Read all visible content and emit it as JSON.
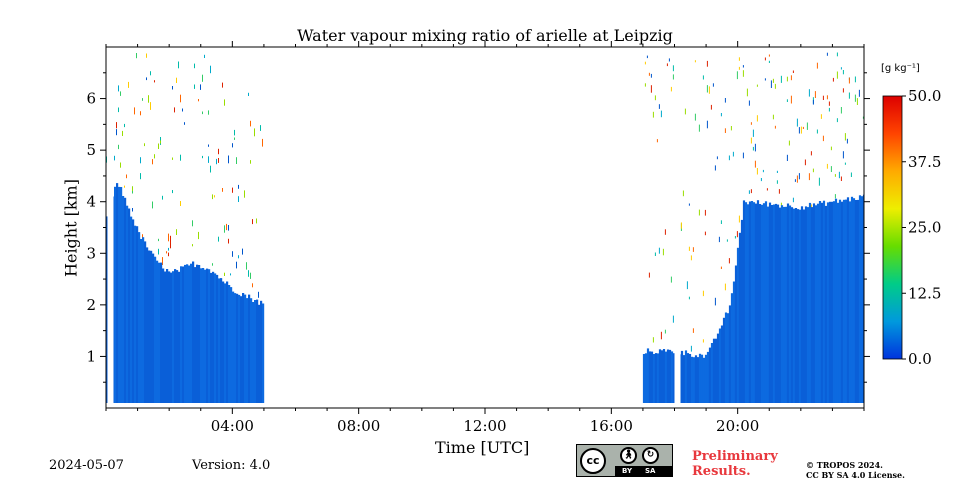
{
  "chart_data": {
    "type": "heatmap",
    "title": "Water vapour mixing ratio of arielle at Leipzig",
    "xlabel": "Time [UTC]",
    "ylabel": "Height [km]",
    "x_range": [
      "00:00",
      "24:00"
    ],
    "x_ticks": [
      "04:00",
      "08:00",
      "12:00",
      "16:00",
      "20:00"
    ],
    "ylim": [
      0,
      7
    ],
    "y_ticks": [
      "1",
      "2",
      "3",
      "4",
      "5",
      "6"
    ],
    "colorbar": {
      "unit": "[g kg⁻¹]",
      "ticks": [
        "50.0",
        "37.5",
        "25.0",
        "12.5",
        "0.0"
      ],
      "range": [
        0,
        50
      ],
      "colors": [
        "#0033dd",
        "#0099dd",
        "#00cc88",
        "#66dd00",
        "#eeee00",
        "#ffaa00",
        "#ff4400",
        "#dd0000"
      ]
    },
    "dense_layer_top_km": [
      {
        "t": "00:00",
        "h": 3.7
      },
      {
        "t": "00:20",
        "h": 4.4
      },
      {
        "t": "01:00",
        "h": 3.4
      },
      {
        "t": "01:30",
        "h": 2.9
      },
      {
        "t": "02:00",
        "h": 2.6
      },
      {
        "t": "02:45",
        "h": 2.8
      },
      {
        "t": "03:15",
        "h": 2.7
      },
      {
        "t": "04:00",
        "h": 2.3
      },
      {
        "t": "05:00",
        "h": 2.0
      },
      {
        "t": "17:00",
        "h": 1.1
      },
      {
        "t": "18:00",
        "h": 1.1
      },
      {
        "t": "19:00",
        "h": 1.0
      },
      {
        "t": "19:45",
        "h": 2.0
      },
      {
        "t": "20:10",
        "h": 4.0
      },
      {
        "t": "22:00",
        "h": 3.9
      },
      {
        "t": "24:00",
        "h": 4.1
      }
    ],
    "grid": false
  },
  "footer": {
    "date": "2024-05-07",
    "version": "Version: 4.0",
    "preliminary_line1": "Preliminary",
    "preliminary_line2": "Results.",
    "copyright_line1": "© TROPOS 2024.",
    "copyright_line2": "CC BY SA 4.0 License."
  },
  "license_badge": {
    "cc": "cc",
    "by": "BY",
    "sa": "SA",
    "by_icon": "person-icon",
    "sa_icon": "share-alike-icon"
  }
}
